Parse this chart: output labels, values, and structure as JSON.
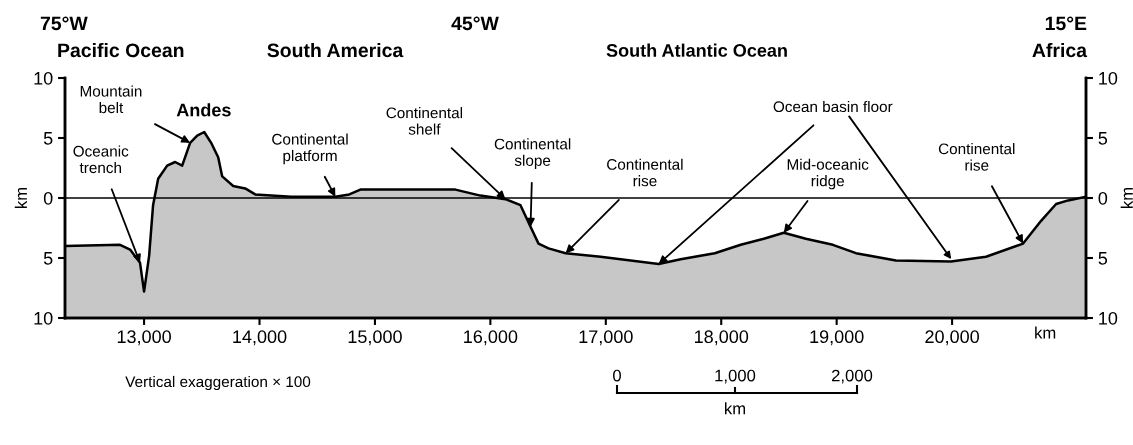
{
  "chart_data": {
    "type": "line",
    "x": [
      12315,
      12792,
      12879,
      12965,
      13000,
      13044,
      13078,
      13122,
      13200,
      13269,
      13330,
      13399,
      13460,
      13521,
      13581,
      13642,
      13677,
      13772,
      13876,
      13963,
      14275,
      14657,
      14778,
      14874,
      15220,
      15697,
      15914,
      16131,
      16261,
      16348,
      16417,
      16504,
      16652,
      16955,
      17458,
      17649,
      17944,
      18169,
      18369,
      18542,
      18733,
      18967,
      19167,
      19514,
      19991,
      20294,
      20615,
      20771,
      20901,
      21005,
      21160
    ],
    "series": [
      {
        "color": "#000000",
        "values": [
          -4.0,
          -3.9,
          -4.3,
          -5.4,
          -7.8,
          -4.8,
          -0.6,
          1.6,
          2.7,
          3.0,
          2.7,
          4.6,
          5.2,
          5.5,
          4.6,
          3.4,
          1.8,
          1.0,
          0.8,
          0.3,
          0.1,
          0.1,
          0.3,
          0.7,
          0.7,
          0.7,
          0.2,
          -0.1,
          -0.6,
          -2.4,
          -3.8,
          -4.2,
          -4.6,
          -4.9,
          -5.5,
          -5.1,
          -4.6,
          -3.9,
          -3.4,
          -2.9,
          -3.4,
          -3.9,
          -4.6,
          -5.2,
          -5.3,
          -4.9,
          -3.8,
          -1.9,
          -0.5,
          -0.2,
          0.1
        ],
        "lower": [
          -10,
          -10,
          -10,
          -10,
          -10,
          -10,
          -10,
          -10,
          -10,
          -10,
          -10,
          -10,
          -10,
          -10,
          -10,
          -10,
          -10,
          -10,
          -10,
          -10,
          -10,
          -10,
          -10,
          -10,
          -10,
          -10,
          -10,
          -10,
          -10,
          -10,
          -10,
          -10,
          -10,
          -10,
          -10,
          -10,
          -10,
          -10,
          -10,
          -10,
          -10,
          -10,
          -10,
          -10,
          -10,
          -10,
          -10,
          -10,
          -10,
          -10,
          -10
        ],
        "upper": [
          -4.0,
          -3.9,
          -4.3,
          -5.4,
          -7.8,
          -4.8,
          -0.6,
          1.6,
          2.7,
          3.0,
          2.7,
          4.6,
          5.2,
          5.5,
          4.6,
          3.4,
          1.8,
          1.0,
          0.8,
          0.3,
          0.1,
          0.1,
          0.3,
          0.7,
          0.7,
          0.7,
          0.2,
          -0.1,
          -0.6,
          -2.4,
          -3.8,
          -4.2,
          -4.6,
          -4.9,
          -5.5,
          -5.1,
          -4.6,
          -3.9,
          -3.4,
          -2.9,
          -3.4,
          -3.9,
          -4.6,
          -5.2,
          -5.3,
          -4.9,
          -3.8,
          -1.9,
          -0.5,
          -0.2,
          0.1
        ]
      }
    ],
    "xlim": [
      12315,
      21160
    ],
    "xticks": [
      {
        "value": 13000,
        "label": "13,000"
      },
      {
        "value": 14000,
        "label": "14,000"
      },
      {
        "value": 15000,
        "label": "15,000"
      },
      {
        "value": 16000,
        "label": "16,000"
      },
      {
        "value": 17000,
        "label": "17,000"
      },
      {
        "value": 18000,
        "label": "18,000"
      },
      {
        "value": 19000,
        "label": "19,000"
      },
      {
        "value": 20000,
        "label": "20,000"
      }
    ],
    "xlabel": "km",
    "ylim": [
      -10,
      10
    ],
    "yticks": [
      {
        "value": 10,
        "label": "10"
      },
      {
        "value": 5,
        "label": "5"
      },
      0,
      {
        "value": -5,
        "label": "5"
      },
      {
        "value": -10,
        "label": "10"
      }
    ],
    "ylabel": "km",
    "y2lim": [
      -10,
      10
    ],
    "y2ticks": [
      {
        "value": 10,
        "label": "10"
      },
      {
        "value": 5,
        "label": "5"
      },
      0,
      {
        "value": -5,
        "label": "5"
      },
      {
        "value": -10,
        "label": "10"
      }
    ],
    "y2label": "km",
    "ref_lines": [
      {
        "axis": "y",
        "value": 0,
        "color": "#000000"
      }
    ],
    "grid": false,
    "legend": false,
    "annotations": [
      "75°W",
      "Pacific Ocean",
      "South America",
      "45°W",
      "South Atlantic Ocean",
      "15°E",
      "Africa",
      "Vertical exaggeration × 100",
      "0",
      "1,000",
      "2,000",
      "km",
      {
        "text": "Mountain\nbelt",
        "x": 13399,
        "y": 4.6
      },
      {
        "text": "Andes",
        "x": 13521,
        "y": 5.5
      },
      {
        "text": "Oceanic\ntrench",
        "x": 12965,
        "y": -5.4
      },
      {
        "text": "Continental\nplatform",
        "x": 14657,
        "y": 0.1
      },
      {
        "text": "Continental\nshelf",
        "x": 16131,
        "y": -0.1
      },
      {
        "text": "Continental\nslope",
        "x": 16348,
        "y": -2.4
      },
      {
        "text": "Continental\nrise",
        "x": 16652,
        "y": -4.6
      },
      {
        "text": "Ocean basin floor",
        "x": 17458,
        "y": -5.5
      },
      {
        "text": "Mid-oceanic\nridge",
        "x": 18542,
        "y": -2.9
      },
      {
        "text": "Continental\nrise",
        "x": 20615,
        "y": -3.8
      }
    ]
  }
}
